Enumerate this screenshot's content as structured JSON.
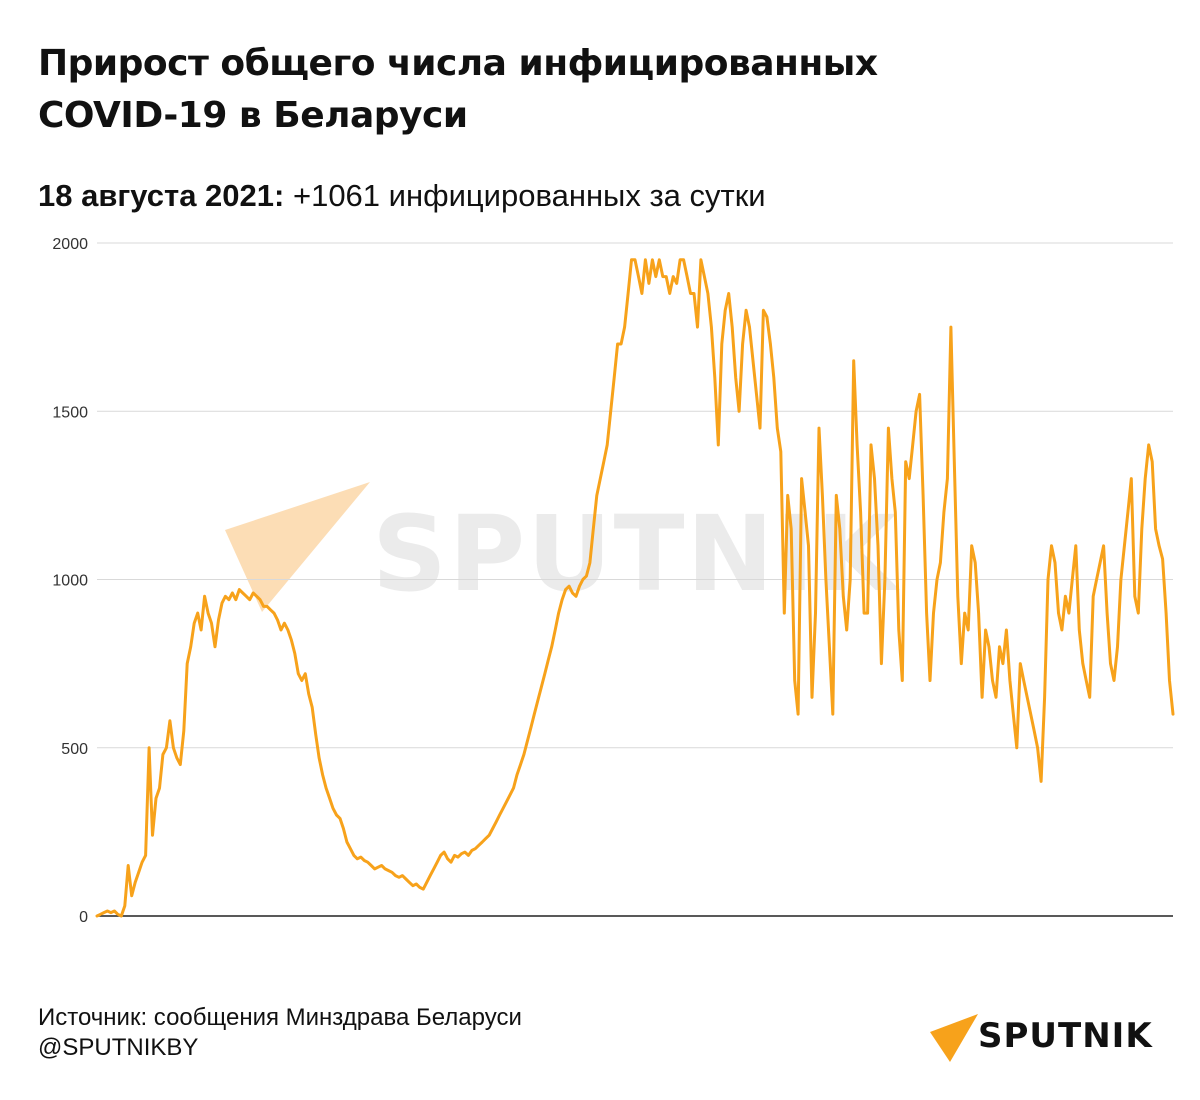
{
  "header": {
    "title_line1": "Прирост общего числа инфицированных",
    "title_line2": "COVID-19 в Беларуси",
    "date": "18 августа 2021:",
    "summary": "+1061 инфицированных за сутки"
  },
  "footer": {
    "source": "Источник: сообщения Минздрава Беларуси",
    "handle": "@SPUTNIKBY"
  },
  "brand": {
    "logo_text": "SPUTNIK",
    "watermark_text": "SPUTNIK",
    "accent_color": "#F7A21B",
    "watermark_color": "#FBD7A8"
  },
  "chart_data": {
    "type": "line",
    "title": "Прирост общего числа инфицированных COVID-19 в Беларуси",
    "xlabel": "",
    "ylabel": "",
    "ylim": [
      0,
      2000
    ],
    "yticks": [
      0,
      500,
      1000,
      1500,
      2000
    ],
    "grid": true,
    "line_color": "#F7A21B",
    "series": [
      {
        "values": [
          0,
          5,
          10,
          15,
          10,
          15,
          5,
          0,
          30,
          150,
          60,
          100,
          130,
          160,
          180,
          500,
          240,
          350,
          380,
          480,
          500,
          580,
          500,
          470,
          450,
          550,
          750,
          800,
          870,
          900,
          850,
          950,
          900,
          870,
          800,
          880,
          930,
          950,
          940,
          960,
          940,
          970,
          960,
          950,
          940,
          960,
          950,
          940,
          920,
          920,
          910,
          900,
          880,
          850,
          870,
          850,
          820,
          780,
          720,
          700,
          720,
          660,
          620,
          540,
          470,
          420,
          380,
          350,
          320,
          300,
          290,
          260,
          220,
          200,
          180,
          170,
          175,
          165,
          160,
          150,
          140,
          145,
          150,
          140,
          135,
          130,
          120,
          115,
          120,
          110,
          100,
          90,
          95,
          85,
          80,
          100,
          120,
          140,
          160,
          180,
          190,
          170,
          160,
          180,
          175,
          185,
          190,
          180,
          195,
          200,
          210,
          220,
          230,
          240,
          260,
          280,
          300,
          320,
          340,
          360,
          380,
          420,
          450,
          480,
          520,
          560,
          600,
          640,
          680,
          720,
          760,
          800,
          850,
          900,
          940,
          970,
          980,
          960,
          950,
          980,
          1000,
          1010,
          1050,
          1150,
          1250,
          1300,
          1350,
          1400,
          1500,
          1600,
          1700,
          1700,
          1750,
          1850,
          1950,
          1950,
          1900,
          1850,
          1950,
          1880,
          1950,
          1900,
          1950,
          1900,
          1900,
          1850,
          1900,
          1880,
          1950,
          1950,
          1900,
          1850,
          1850,
          1750,
          1950,
          1900,
          1850,
          1750,
          1600,
          1400,
          1700,
          1800,
          1850,
          1750,
          1600,
          1500,
          1700,
          1800,
          1750,
          1650,
          1550,
          1450,
          1800,
          1780,
          1700,
          1600,
          1450,
          1380,
          900,
          1250,
          1150,
          700,
          600,
          1300,
          1200,
          1100,
          650,
          900,
          1450,
          1250,
          1000,
          800,
          600,
          1250,
          1150,
          950,
          850,
          1000,
          1650,
          1400,
          1200,
          900,
          900,
          1400,
          1300,
          1100,
          750,
          1000,
          1450,
          1300,
          1200,
          850,
          700,
          1350,
          1300,
          1400,
          1500,
          1550,
          1250,
          900,
          700,
          900,
          1000,
          1050,
          1200,
          1300,
          1750,
          1350,
          950,
          750,
          900,
          850,
          1100,
          1050,
          900,
          650,
          850,
          800,
          700,
          650,
          800,
          750,
          850,
          700,
          600,
          500,
          750,
          700,
          650,
          600,
          550,
          500,
          400,
          650,
          1000,
          1100,
          1050,
          900,
          850,
          950,
          900,
          1000,
          1100,
          850,
          750,
          700,
          650,
          950,
          1000,
          1050,
          1100,
          900,
          750,
          700,
          800,
          1000,
          1100,
          1200,
          1300,
          950,
          900,
          1150,
          1300,
          1400,
          1350,
          1150,
          1100,
          1061,
          900,
          700,
          600
        ]
      }
    ]
  }
}
